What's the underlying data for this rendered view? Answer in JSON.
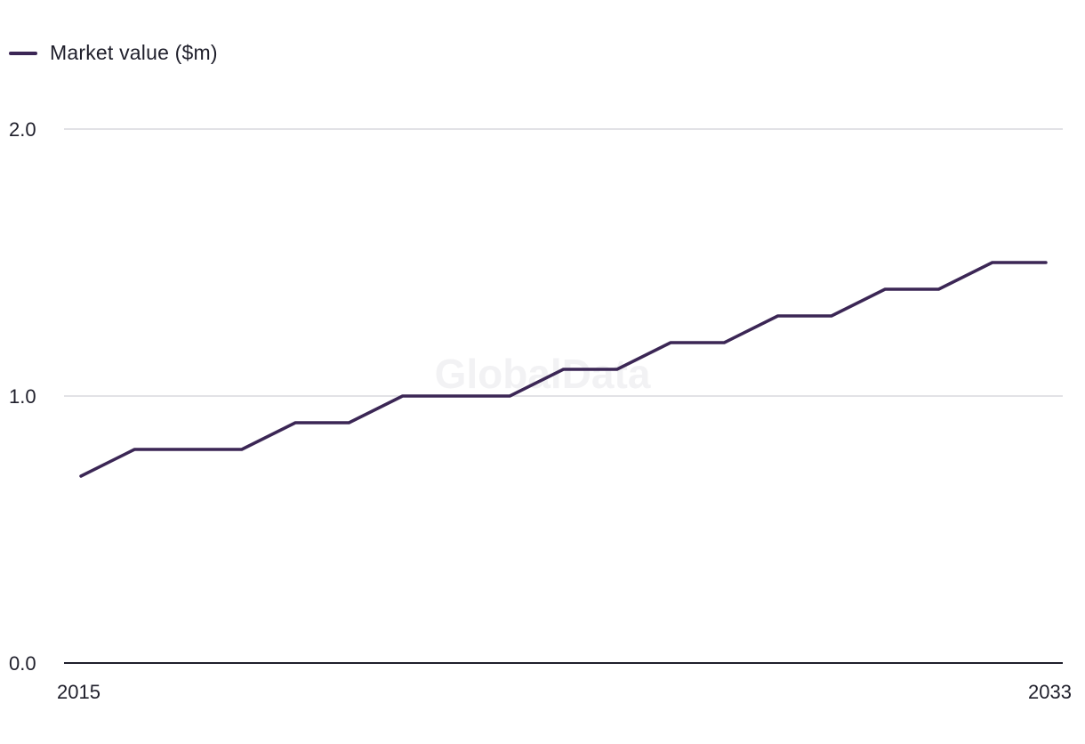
{
  "legend": {
    "label": "Market value ($m)"
  },
  "watermark": "GlobalData",
  "colors": {
    "series": "#3b2655",
    "grid": "#d9d9de",
    "axis": "#1f1f2b"
  },
  "chart_data": {
    "type": "line",
    "title": "",
    "xlabel": "",
    "ylabel": "",
    "x": [
      2015,
      2016,
      2017,
      2018,
      2019,
      2020,
      2021,
      2022,
      2023,
      2024,
      2025,
      2026,
      2027,
      2028,
      2029,
      2030,
      2031,
      2032,
      2033
    ],
    "series": [
      {
        "name": "Market value ($m)",
        "values": [
          0.7,
          0.8,
          0.8,
          0.8,
          0.9,
          0.9,
          1.0,
          1.0,
          1.0,
          1.1,
          1.1,
          1.2,
          1.2,
          1.3,
          1.3,
          1.4,
          1.4,
          1.5,
          1.5
        ]
      }
    ],
    "xlim": [
      2015,
      2033
    ],
    "ylim": [
      0,
      2
    ],
    "yticks": [
      "0.0",
      "1.0",
      "2.0"
    ],
    "xticks": [
      "2015",
      "2033"
    ],
    "grid": true,
    "legend_position": "top-left"
  }
}
